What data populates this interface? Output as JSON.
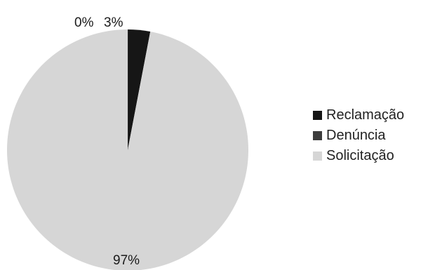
{
  "chart_data": {
    "type": "pie",
    "categories": [
      "Reclamação",
      "Denúncia",
      "Solicitação"
    ],
    "values": [
      3,
      0,
      97
    ],
    "value_labels": [
      "3%",
      "0%",
      "97%"
    ],
    "colors": [
      "#161616",
      "#3c3c3c",
      "#d6d6d6"
    ],
    "legend_position": "right",
    "title": ""
  }
}
